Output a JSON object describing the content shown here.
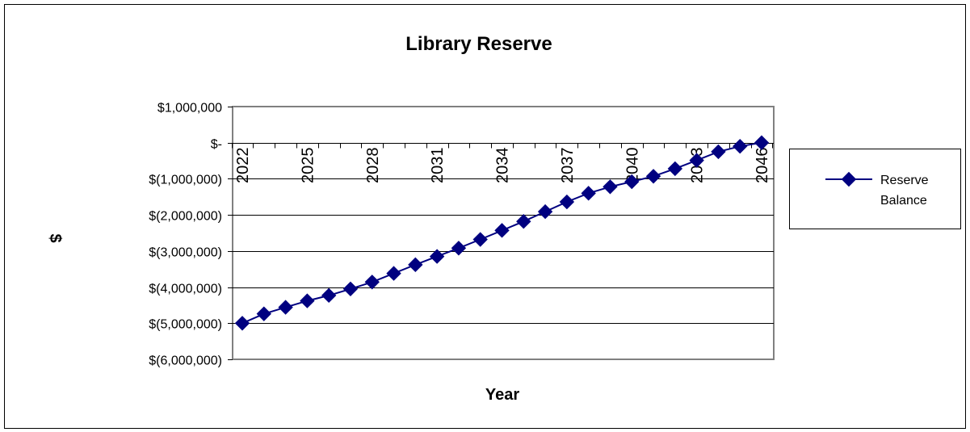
{
  "chart_data": {
    "type": "line",
    "title": "Library Reserve",
    "xlabel": "Year",
    "ylabel": "$",
    "ylim": [
      -6000000,
      1000000
    ],
    "yticks": [
      1000000,
      0,
      -1000000,
      -2000000,
      -3000000,
      -4000000,
      -5000000,
      -6000000
    ],
    "ytick_labels": [
      "$1,000,000",
      "$-",
      "$(1,000,000)",
      "$(2,000,000)",
      "$(3,000,000)",
      "$(4,000,000)",
      "$(5,000,000)",
      "$(6,000,000)"
    ],
    "xtick_labels": [
      "2022",
      "2025",
      "2028",
      "2031",
      "2034",
      "2037",
      "2040",
      "2043",
      "2046"
    ],
    "grid": true,
    "legend_position": "right",
    "colors": {
      "series": "#000080",
      "grid": "#000000",
      "plot_border": "#808080"
    },
    "x": [
      2022,
      2023,
      2024,
      2025,
      2026,
      2027,
      2028,
      2029,
      2030,
      2031,
      2032,
      2033,
      2034,
      2035,
      2036,
      2037,
      2038,
      2039,
      2040,
      2041,
      2042,
      2043,
      2044,
      2045,
      2046
    ],
    "series": [
      {
        "name": "Reserve Balance",
        "values": [
          -5000000,
          -4740000,
          -4560000,
          -4380000,
          -4230000,
          -4050000,
          -3860000,
          -3620000,
          -3380000,
          -3150000,
          -2920000,
          -2680000,
          -2430000,
          -2180000,
          -1910000,
          -1640000,
          -1400000,
          -1220000,
          -1080000,
          -930000,
          -720000,
          -490000,
          -250000,
          -100000,
          0
        ]
      }
    ]
  }
}
